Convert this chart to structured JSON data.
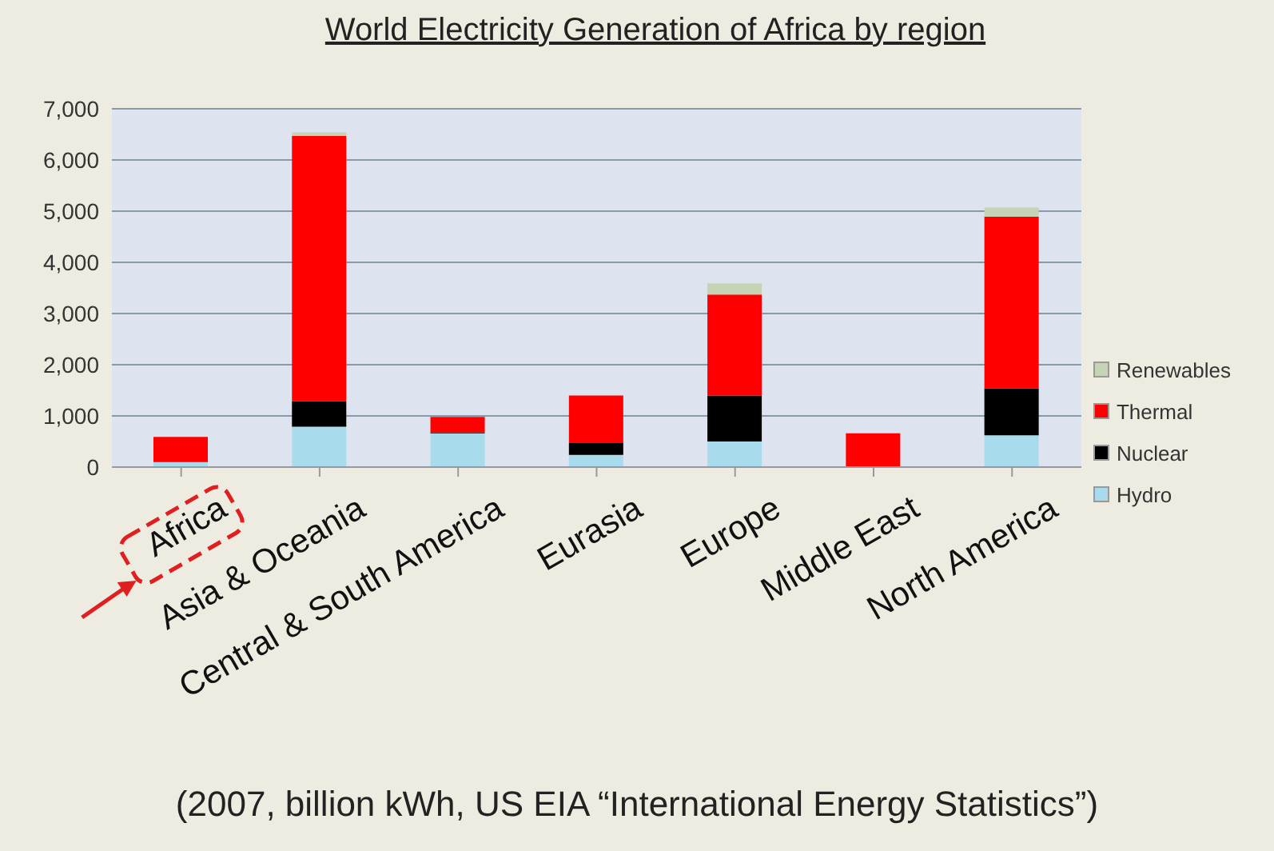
{
  "chart_data": {
    "type": "bar",
    "title": "World Electricity Generation of Africa by region",
    "categories": [
      "Africa",
      "Asia & Oceania",
      "Central & South America",
      "Eurasia",
      "Europe",
      "Middle East",
      "North America"
    ],
    "series": [
      {
        "name": "Hydro",
        "color": "#a8dcec",
        "values": [
          100,
          790,
          660,
          240,
          500,
          null,
          620
        ]
      },
      {
        "name": "Nuclear",
        "color": "#000000",
        "values": [
          10,
          500,
          20,
          230,
          900,
          0,
          920
        ]
      },
      {
        "name": "Thermal",
        "color": "#ff0000",
        "values": [
          480,
          5180,
          300,
          930,
          1970,
          660,
          3350
        ]
      },
      {
        "name": "Renewables",
        "color": "#c4d4b4",
        "values": [
          null,
          70,
          null,
          null,
          220,
          0,
          180
        ]
      }
    ],
    "stacked": true,
    "ylim": [
      0,
      7000
    ],
    "yticks": [
      0,
      {
        "value": 1000,
        "label": "1,000"
      },
      {
        "value": 2000,
        "label": "2,000"
      },
      {
        "value": 3000,
        "label": "3,000"
      },
      {
        "value": 4000,
        "label": "4,000"
      },
      {
        "value": 5000,
        "label": "5,000"
      },
      {
        "value": 6000,
        "label": "6,000"
      },
      {
        "value": 7000,
        "label": "7,000"
      }
    ],
    "grid": "y",
    "legend": "right",
    "annotations": [
      "(2007, billion kWh, US EIA “International Energy Statistics”)"
    ]
  }
}
